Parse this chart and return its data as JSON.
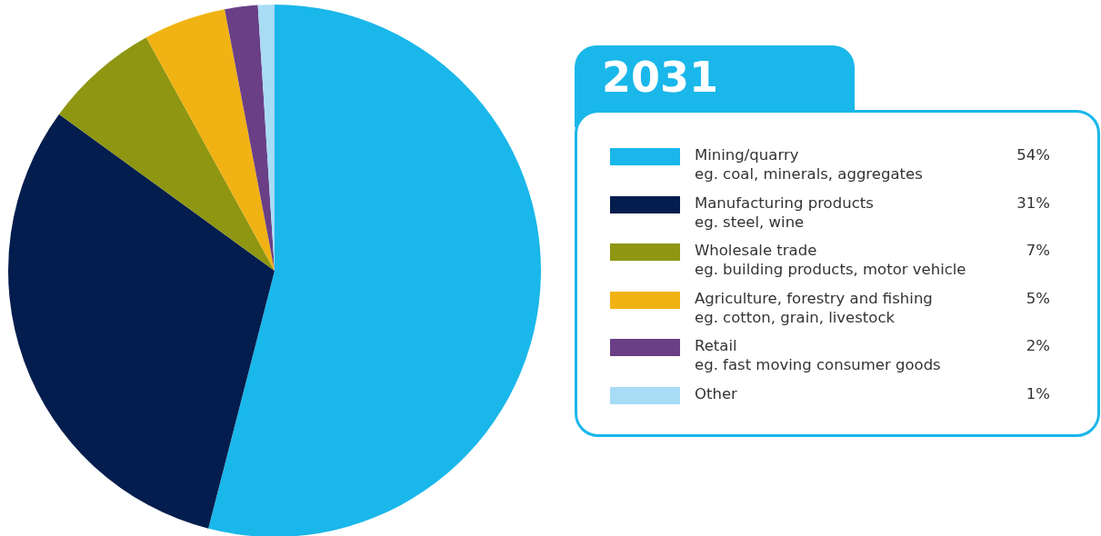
{
  "chart_data": {
    "type": "pie",
    "title": "2031",
    "categories": [
      "Mining/quarry\neg. coal, minerals, aggregates",
      "Manufacturing products\neg. steel, wine",
      "Wholesale trade\neg. building products, motor vehicle",
      "Agriculture, forestry and fishing\neg. cotton, grain, livestock",
      "Retail\neg. fast moving consumer goods",
      "Other"
    ],
    "values": [
      54,
      31,
      7,
      5,
      2,
      1
    ],
    "colors": [
      "#1ab7ea",
      "#031d4e",
      "#8e9612",
      "#f0b313",
      "#6a3f86",
      "#a8dcf5"
    ],
    "value_labels": [
      "54%",
      "31%",
      "7%",
      "5%",
      "2%",
      "1%"
    ],
    "legend": "right"
  }
}
